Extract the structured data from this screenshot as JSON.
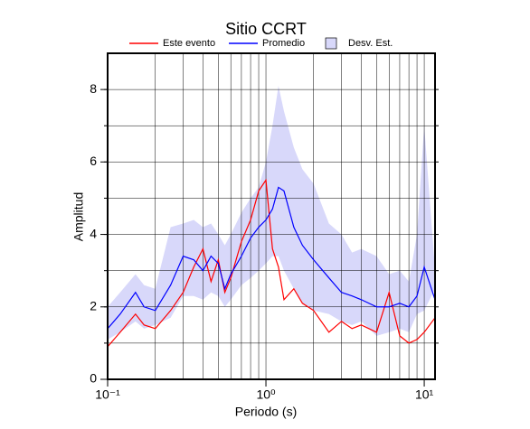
{
  "chart_data": {
    "type": "line",
    "title": "Sitio CCRT",
    "xlabel": "Periodo (s)",
    "ylabel": "Amplitud",
    "x": [
      0.1,
      0.12,
      0.15,
      0.17,
      0.2,
      0.25,
      0.3,
      0.35,
      0.4,
      0.45,
      0.5,
      0.55,
      0.6,
      0.7,
      0.8,
      0.9,
      1.0,
      1.1,
      1.2,
      1.3,
      1.5,
      1.7,
      2.0,
      2.5,
      3.0,
      3.5,
      4,
      5,
      6,
      7,
      8,
      9,
      10,
      11.7
    ],
    "series": [
      {
        "name": "Este evento",
        "color": "#ff0000",
        "values": [
          0.9,
          1.3,
          1.8,
          1.5,
          1.4,
          1.9,
          2.4,
          3.1,
          3.6,
          2.7,
          3.3,
          2.4,
          2.8,
          3.8,
          4.4,
          5.2,
          5.5,
          3.6,
          3.1,
          2.2,
          2.5,
          2.1,
          1.9,
          1.3,
          1.6,
          1.4,
          1.5,
          1.3,
          2.4,
          1.2,
          1.0,
          1.1,
          1.3,
          1.7
        ]
      },
      {
        "name": "Promedio",
        "color": "#0000ff",
        "values": [
          1.4,
          1.8,
          2.4,
          2.0,
          1.9,
          2.6,
          3.4,
          3.3,
          3.0,
          3.4,
          3.2,
          2.5,
          2.9,
          3.4,
          3.9,
          4.2,
          4.4,
          4.7,
          5.3,
          5.2,
          4.2,
          3.7,
          3.3,
          2.8,
          2.4,
          2.3,
          2.2,
          2.0,
          2.0,
          2.1,
          2.0,
          2.3,
          3.1,
          2.2
        ]
      }
    ],
    "band": {
      "name": "Desv. Est.",
      "color": "#d8d8fa",
      "lower": [
        1.1,
        1.3,
        1.6,
        1.4,
        1.5,
        1.7,
        2.3,
        2.3,
        2.2,
        2.4,
        2.3,
        2.0,
        2.2,
        2.6,
        2.8,
        3.0,
        3.2,
        3.4,
        3.4,
        3.0,
        2.5,
        2.1,
        1.9,
        1.8,
        1.6,
        1.5,
        1.6,
        1.2,
        1.3,
        1.4,
        1.3,
        1.8,
        1.9,
        2.5
      ],
      "upper": [
        2.0,
        2.4,
        2.9,
        2.6,
        2.5,
        4.2,
        4.3,
        4.4,
        4.2,
        4.3,
        4.0,
        3.7,
        4.0,
        4.6,
        5.0,
        5.3,
        6.0,
        7.0,
        8.1,
        7.4,
        6.4,
        5.8,
        5.4,
        4.3,
        4.0,
        3.5,
        3.6,
        3.4,
        2.9,
        3.0,
        2.7,
        4.0,
        7.0,
        3.0
      ]
    },
    "xscale": "log",
    "xlim": [
      0.1,
      11.7
    ],
    "ylim": [
      0,
      9
    ],
    "xticks": [
      {
        "value": 0.1,
        "label": "10⁻¹"
      },
      {
        "value": 1,
        "label": "10⁰"
      },
      {
        "value": 10,
        "label": "10¹"
      }
    ],
    "yticks": [
      0,
      2,
      4,
      6,
      8
    ],
    "xgrid": [
      0.2,
      0.3,
      0.4,
      0.5,
      0.6,
      0.7,
      0.8,
      0.9,
      1,
      2,
      3,
      4,
      5,
      6,
      7,
      8,
      9,
      10
    ],
    "ygrid": [
      1,
      2,
      3,
      4,
      5,
      6,
      7,
      8
    ]
  }
}
